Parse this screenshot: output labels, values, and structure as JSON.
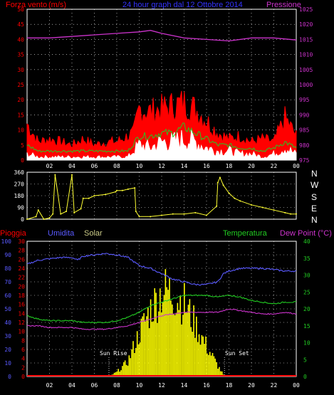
{
  "colors": {
    "background": "#000000",
    "grid": "#ffffff",
    "wind_gust": "#ff0000",
    "wind_avg": "#22cc22",
    "wind_speed": "#ffffff",
    "pressure": "#cc33cc",
    "direction": "#ffff33",
    "humidity": "#5a5aff",
    "temperature": "#22cc22",
    "dew_point": "#cc33cc",
    "solar": "#ffff00",
    "rain": "#ff0000"
  },
  "header": {
    "wind_label": "Forza vento",
    "unit": "(m/s)",
    "title": "24 hour graph dal  12 Ottobre 2014",
    "pressure_label": "Pressione",
    "dir_n": "N",
    "dir_w": "W",
    "dir_s": "S",
    "dir_e": "E",
    "dir_n2": "N"
  },
  "bottom_header": {
    "rain": "Pioggia",
    "humidity": "Umidita",
    "solar": "Solar",
    "temperature": "Temperatura",
    "dew_point": "Dew Point (°C)",
    "sun_rise": "Sun Rise",
    "sun_set": "Sun Set"
  },
  "chart_data": [
    {
      "type": "line",
      "name": "wind-pressure",
      "x_ticks": [
        "02",
        "04",
        "06",
        "08",
        "10",
        "12",
        "14",
        "16",
        "18",
        "20",
        "22",
        "00"
      ],
      "y_left_ticks": [
        "0",
        "5",
        "10",
        "15",
        "20",
        "25",
        "30",
        "35",
        "40",
        "45",
        "50"
      ],
      "y_right_ticks": [
        "975",
        "980",
        "985",
        "990",
        "995",
        "1000",
        "1005",
        "1010",
        "1015",
        "1020",
        "1025"
      ],
      "ylim_left": [
        0,
        50
      ],
      "ylim_right": [
        975,
        1025
      ],
      "series": [
        {
          "name": "Pressione",
          "x": [
            0,
            2,
            4,
            6,
            8,
            10,
            11,
            12,
            14,
            16,
            18,
            20,
            22,
            24
          ],
          "values": [
            1015.5,
            1015.5,
            1016,
            1016.5,
            1017,
            1017.5,
            1018,
            1017,
            1015.5,
            1015,
            1014.5,
            1015.5,
            1015.5,
            1014.8
          ]
        },
        {
          "x": [
            0,
            1,
            2,
            3,
            4,
            5,
            6,
            7,
            8,
            9,
            9.5,
            10,
            11,
            12,
            13,
            14,
            15,
            16,
            17,
            18,
            19,
            20,
            21,
            22,
            23,
            24
          ],
          "values": [
            12,
            6,
            7,
            6,
            5,
            7,
            5,
            6,
            6,
            8,
            9,
            17,
            16,
            17,
            18,
            19,
            17,
            13,
            9,
            7,
            8,
            6,
            7,
            6,
            14,
            8
          ]
        },
        {
          "x": [
            0,
            1,
            2,
            3,
            4,
            5,
            6,
            7,
            8,
            9,
            10,
            11,
            12,
            13,
            14,
            15,
            16,
            17,
            18,
            19,
            20,
            21,
            22,
            23,
            24
          ],
          "values": [
            5,
            3,
            3,
            3,
            3,
            3,
            3,
            3,
            3,
            3,
            8,
            8,
            9,
            9,
            11,
            9,
            7,
            5,
            5,
            4,
            4,
            3,
            4,
            6,
            4
          ]
        },
        {
          "x": [
            0,
            1,
            2,
            3,
            4,
            5,
            6,
            7,
            8,
            9,
            10,
            11,
            12,
            13,
            14,
            15,
            16,
            17,
            18,
            19,
            20,
            21,
            22,
            23,
            24
          ],
          "values": [
            2,
            1,
            1,
            1,
            1,
            1,
            1,
            1,
            1,
            1,
            5,
            4,
            6,
            6,
            7,
            6,
            4,
            3,
            3,
            2,
            2,
            1,
            2,
            4,
            2
          ]
        }
      ]
    },
    {
      "type": "scatter",
      "name": "wind-direction",
      "y_ticks": [
        "360",
        "270",
        "180",
        "90",
        "0"
      ],
      "ylim": [
        0,
        360
      ],
      "x": [
        0,
        0.8,
        1,
        1.5,
        2,
        2.3,
        2.5,
        3,
        3.5,
        4,
        4.2,
        4.8,
        5,
        5.5,
        6,
        7,
        7.9,
        8,
        8.5,
        9,
        9.6,
        9.7,
        10,
        11,
        12,
        13,
        14,
        15,
        16,
        16.9,
        17,
        17.2,
        17.5,
        18,
        18.5,
        19,
        20,
        21,
        22,
        23,
        23.5,
        24
      ],
      "values": [
        0,
        20,
        70,
        0,
        10,
        40,
        340,
        40,
        60,
        340,
        50,
        80,
        160,
        160,
        180,
        190,
        210,
        220,
        220,
        230,
        240,
        60,
        20,
        20,
        30,
        40,
        40,
        50,
        30,
        100,
        280,
        320,
        260,
        200,
        160,
        140,
        110,
        90,
        70,
        50,
        40,
        40
      ]
    },
    {
      "type": "line",
      "name": "temperature-humidity-solar",
      "y_rain_ticks": [
        "0",
        "2",
        "4",
        "6",
        "8",
        "10",
        "12",
        "14",
        "16",
        "18",
        "20",
        "22",
        "24",
        "26",
        "28",
        "30"
      ],
      "y_humidity_ticks": [
        "0",
        "10",
        "20",
        "30",
        "40",
        "50",
        "60",
        "70",
        "80",
        "90",
        "100"
      ],
      "y_temperature_ticks": [
        "0",
        "5",
        "10",
        "15",
        "20",
        "25",
        "30",
        "35",
        "40"
      ],
      "series": [
        {
          "name": "Umidita",
          "x": [
            0,
            1,
            2,
            3,
            4,
            4.5,
            5,
            6,
            7,
            8,
            9,
            10,
            11,
            12,
            13,
            14,
            15,
            16,
            17,
            17.5,
            18,
            19,
            20,
            21,
            22,
            23,
            24
          ],
          "values": [
            83,
            86,
            87,
            88,
            88,
            86,
            89,
            90,
            91,
            90,
            88,
            82,
            80,
            76,
            72,
            70,
            68,
            68,
            70,
            76,
            78,
            80,
            80,
            80,
            79,
            78,
            78
          ]
        },
        {
          "name": "Temperatura",
          "x": [
            0,
            1,
            2,
            3,
            4,
            5,
            6,
            7,
            8,
            9,
            10,
            11,
            12,
            13,
            14,
            15,
            16,
            17,
            18,
            19,
            20,
            21,
            22,
            23,
            24
          ],
          "values": [
            18,
            17,
            16.5,
            16.5,
            16.5,
            16,
            16,
            16,
            16.5,
            17.5,
            19,
            21,
            22,
            23,
            24,
            24,
            24,
            23.5,
            24,
            23.5,
            22.5,
            22,
            21.5,
            22,
            22
          ]
        },
        {
          "name": "Dew Point",
          "x": [
            0,
            1,
            2,
            3,
            4,
            5,
            6,
            7,
            8,
            9,
            10,
            11,
            12,
            13,
            14,
            15,
            16,
            17,
            18,
            19,
            20,
            21,
            22,
            23,
            24
          ],
          "values": [
            15,
            15,
            14.5,
            14.5,
            14.5,
            14,
            14,
            14,
            14.5,
            15,
            16,
            17,
            18,
            18.5,
            19,
            19,
            19,
            19,
            20,
            19.5,
            19,
            18.5,
            18.5,
            19,
            18.5
          ]
        },
        {
          "name": "Solar",
          "x": [
            7.3,
            8,
            9,
            10,
            11,
            12,
            12.5,
            13,
            14,
            15,
            16,
            17,
            17.6
          ],
          "values": [
            0,
            4,
            14,
            40,
            62,
            78,
            80,
            76,
            68,
            48,
            28,
            10,
            0
          ]
        }
      ]
    }
  ]
}
